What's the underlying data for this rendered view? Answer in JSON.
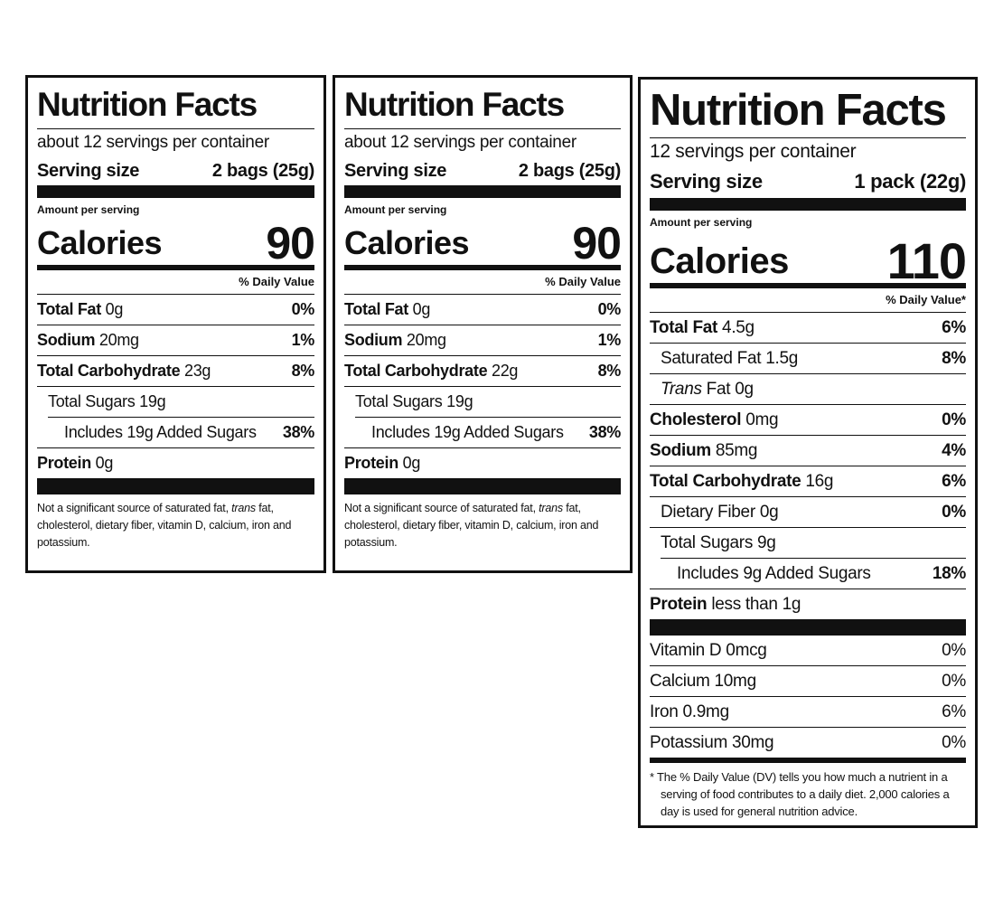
{
  "labels": [
    {
      "title": "Nutrition Facts",
      "servings": "about 12 servings per container",
      "serving_size_label": "Serving size",
      "serving_size": "2 bags (25g)",
      "amount_per_serving": "Amount per serving",
      "calories_label": "Calories",
      "calories": 90,
      "dv_header": "% Daily Value",
      "nutrients": [
        {
          "name": "Total Fat",
          "amount": "0g",
          "dv": "0%"
        },
        {
          "name": "Sodium",
          "amount": "20mg",
          "dv": "1%"
        },
        {
          "name": "Total Carbohydrate",
          "amount": "23g",
          "dv": "8%",
          "sub": [
            {
              "name": "Total Sugars",
              "amount": "19g",
              "sub": [
                {
                  "name": "Includes 19g Added Sugars",
                  "dv": "38%"
                }
              ]
            }
          ]
        },
        {
          "name": "Protein",
          "amount": "0g"
        }
      ],
      "footnote": {
        "before": "Not a significant source of saturated fat,",
        "italic": "trans",
        "after": "fat, cholesterol, dietary fiber, vitamin D, calcium, iron and potassium."
      }
    },
    {
      "title": "Nutrition Facts",
      "servings": "about 12 servings per container",
      "serving_size_label": "Serving size",
      "serving_size": "2 bags (25g)",
      "amount_per_serving": "Amount per serving",
      "calories_label": "Calories",
      "calories": 90,
      "dv_header": "% Daily Value",
      "nutrients": [
        {
          "name": "Total Fat",
          "amount": "0g",
          "dv": "0%"
        },
        {
          "name": "Sodium",
          "amount": "20mg",
          "dv": "1%"
        },
        {
          "name": "Total Carbohydrate",
          "amount": "22g",
          "dv": "8%",
          "sub": [
            {
              "name": "Total Sugars",
              "amount": "19g",
              "sub": [
                {
                  "name": "Includes 19g Added Sugars",
                  "dv": "38%"
                }
              ]
            }
          ]
        },
        {
          "name": "Protein",
          "amount": "0g"
        }
      ],
      "footnote": {
        "before": "Not a significant source of saturated fat,",
        "italic": "trans",
        "after": "fat, cholesterol, dietary fiber, vitamin D, calcium, iron and potassium."
      }
    },
    {
      "title": "Nutrition Facts",
      "servings": "12 servings per container",
      "serving_size_label": "Serving size",
      "serving_size": "1 pack (22g)",
      "amount_per_serving": "Amount per serving",
      "calories_label": "Calories",
      "calories": 110,
      "dv_header": "% Daily Value*",
      "nutrients": [
        {
          "name": "Total Fat",
          "amount": "4.5g",
          "dv": "6%",
          "sub": [
            {
              "name": "Saturated Fat",
              "amount": "1.5g",
              "dv": "8%"
            },
            {
              "italic": "Trans",
              "name": "Fat",
              "amount": "0g"
            }
          ]
        },
        {
          "name": "Cholesterol",
          "amount": "0mg",
          "dv": "0%"
        },
        {
          "name": "Sodium",
          "amount": "85mg",
          "dv": "4%"
        },
        {
          "name": "Total Carbohydrate",
          "amount": "16g",
          "dv": "6%",
          "sub": [
            {
              "name": "Dietary Fiber",
              "amount": "0g",
              "dv": "0%"
            },
            {
              "name": "Total Sugars",
              "amount": "9g",
              "sub": [
                {
                  "name": "Includes 9g Added Sugars",
                  "dv": "18%"
                }
              ]
            }
          ]
        },
        {
          "name": "Protein",
          "amount": "less than 1g"
        }
      ],
      "vitamins": [
        {
          "name": "Vitamin D",
          "amount": "0mcg",
          "dv": "0%"
        },
        {
          "name": "Calcium",
          "amount": "10mg",
          "dv": "0%"
        },
        {
          "name": "Iron",
          "amount": "0.9mg",
          "dv": "6%"
        },
        {
          "name": "Potassium",
          "amount": "30mg",
          "dv": "0%"
        }
      ],
      "footnote": {
        "marker": "*",
        "text": "The % Daily Value (DV) tells you how much a nutrient in a serving of food contributes to a daily diet. 2,000 calories a day is used for general nutrition advice."
      }
    }
  ]
}
